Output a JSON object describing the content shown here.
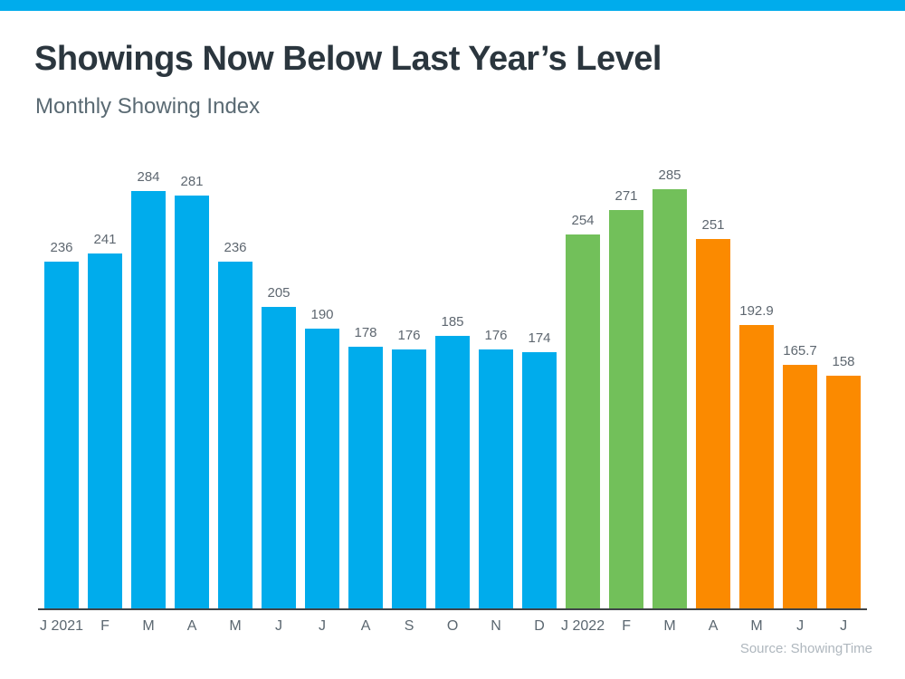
{
  "theme": {
    "accent_bar_color": "#00ACEC",
    "title_color": "#2B363E",
    "subtitle_color": "#5A6A73",
    "label_color": "#5E6770",
    "tick_color": "#5B6770",
    "axis_line_color": "#3F4448",
    "source_color": "#AFB7BE",
    "background": "#FFFFFF"
  },
  "chart_data": {
    "type": "bar",
    "title": "Showings Now Below Last Year’s Level",
    "subtitle": "Monthly Showing Index",
    "source": "Source: ShowingTime",
    "categories": [
      "J 2021",
      "F",
      "M",
      "A",
      "M",
      "J",
      "J",
      "A",
      "S",
      "O",
      "N",
      "D",
      "J 2022",
      "F",
      "M",
      "A",
      "M",
      "J",
      "J"
    ],
    "values": [
      236,
      241,
      284,
      281,
      236,
      205,
      190,
      178,
      176,
      185,
      176,
      174,
      254,
      271,
      285,
      251,
      192.9,
      165.7,
      158
    ],
    "groups": [
      "y2021",
      "y2021",
      "y2021",
      "y2021",
      "y2021",
      "y2021",
      "y2021",
      "y2021",
      "y2021",
      "y2021",
      "y2021",
      "y2021",
      "y2022_peak",
      "y2022_peak",
      "y2022_peak",
      "y2022_decline",
      "y2022_decline",
      "y2022_decline",
      "y2022_decline"
    ],
    "group_colors": {
      "y2021": "#00ACEC",
      "y2022_peak": "#72C05A",
      "y2022_decline": "#FB8A00"
    },
    "xlabel": "",
    "ylabel": "",
    "ylim": [
      0,
      285
    ],
    "grid": false,
    "legend": "none",
    "value_labels_shown": true
  }
}
